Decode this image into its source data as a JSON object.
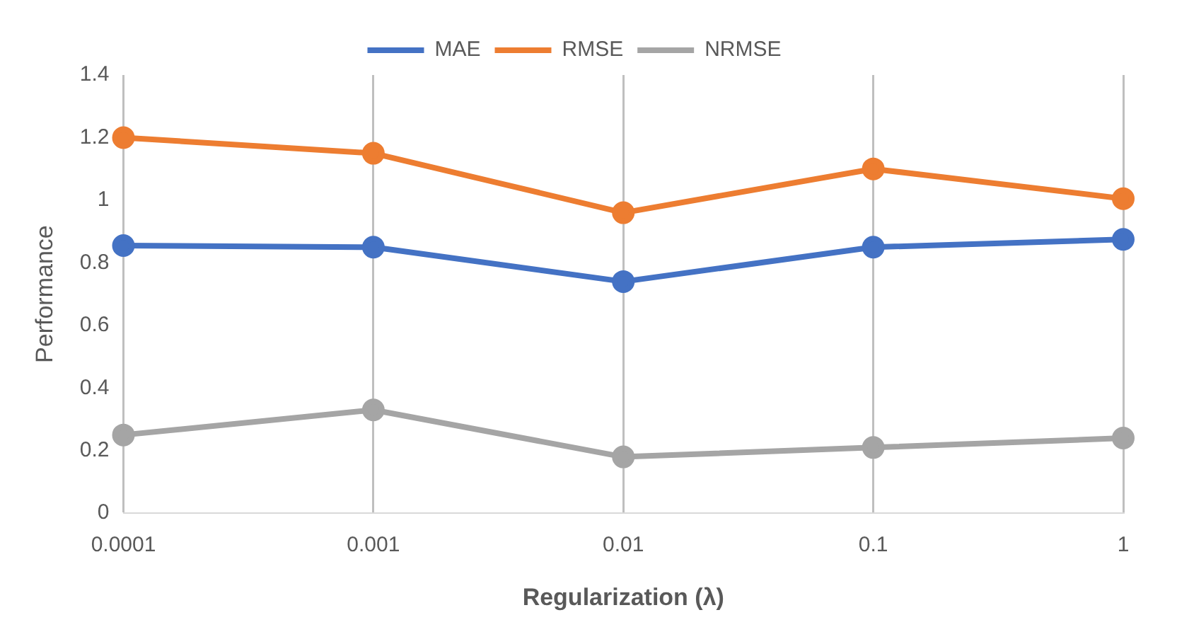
{
  "chart_data": {
    "type": "line",
    "xlabel": "Regularization (λ)",
    "ylabel": "Performance",
    "categories": [
      "0.0001",
      "0.001",
      "0.01",
      "0.1",
      "1"
    ],
    "series": [
      {
        "name": "MAE",
        "color": "#4472c4",
        "values": [
          0.855,
          0.85,
          0.74,
          0.85,
          0.875
        ]
      },
      {
        "name": "RMSE",
        "color": "#ed7d31",
        "values": [
          1.2,
          1.15,
          0.96,
          1.1,
          1.005
        ]
      },
      {
        "name": "NRMSE",
        "color": "#a5a5a5",
        "values": [
          0.25,
          0.33,
          0.18,
          0.21,
          0.24
        ]
      }
    ],
    "ylim": [
      0,
      1.4
    ],
    "yticks": [
      0,
      0.2,
      0.4,
      0.6,
      0.8,
      1,
      1.2,
      1.4
    ],
    "grid": "x",
    "legend": "top",
    "marker": "circle",
    "line_style": "solid"
  }
}
